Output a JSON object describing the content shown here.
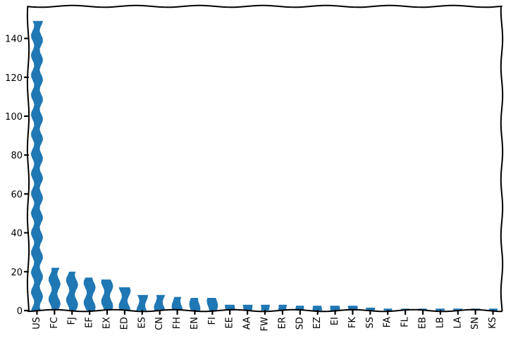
{
  "chart_data": {
    "type": "bar",
    "title": "",
    "xlabel": "",
    "ylabel": "",
    "categories": [
      "US",
      "FC",
      "FJ",
      "EF",
      "EX",
      "ED",
      "ES",
      "CN",
      "FH",
      "EN",
      "FI",
      "EE",
      "AA",
      "FW",
      "ER",
      "SD",
      "EZ",
      "EI",
      "FK",
      "SS",
      "FA",
      "FL",
      "EB",
      "LB",
      "LA",
      "SN",
      "KS"
    ],
    "values": [
      149,
      22,
      20,
      17,
      16,
      12,
      8,
      8,
      7,
      6.5,
      6.5,
      3,
      3,
      3,
      3,
      2.5,
      2.5,
      2.5,
      2.5,
      1.5,
      1,
      1,
      1,
      1,
      1,
      1,
      1
    ],
    "ylim": [
      0,
      156.5
    ],
    "yticks": [
      "0",
      "20",
      "40",
      "60",
      "80",
      "100",
      "120",
      "140"
    ],
    "bar_color": "#1f77b4",
    "grid": false,
    "legend": "none"
  }
}
